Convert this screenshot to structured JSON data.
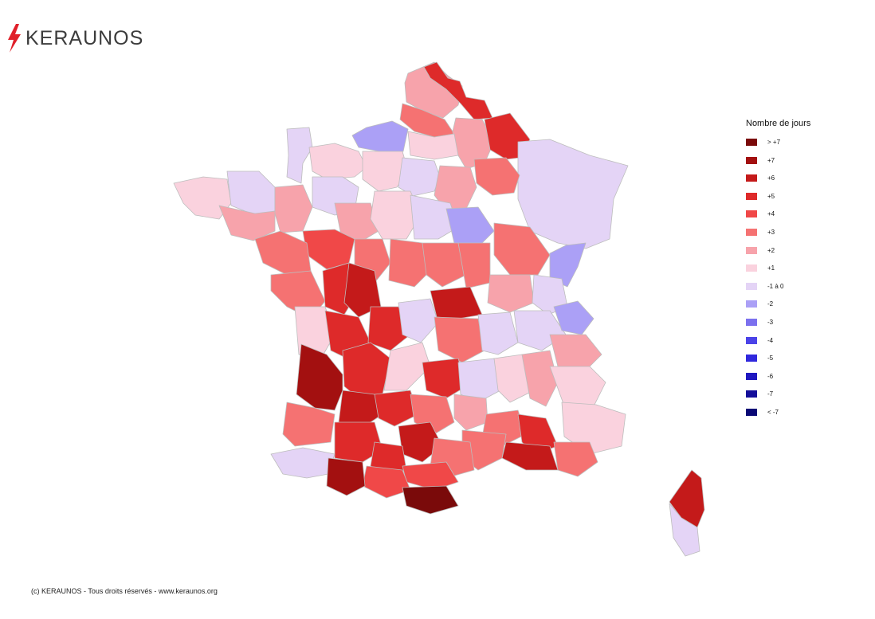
{
  "brand": {
    "name": "KERAUNOS",
    "bolt_color": "#e0202a",
    "text_color": "#3c3c3c"
  },
  "legend": {
    "title": "Nombre de jours",
    "items": [
      {
        "label": "> +7",
        "color": "#7a0a0a"
      },
      {
        "label": "+7",
        "color": "#a31010"
      },
      {
        "label": "+6",
        "color": "#c41a1a"
      },
      {
        "label": "+5",
        "color": "#de2a2a"
      },
      {
        "label": "+4",
        "color": "#f04848"
      },
      {
        "label": "+3",
        "color": "#f57272"
      },
      {
        "label": "+2",
        "color": "#f7a3ab"
      },
      {
        "label": "+1",
        "color": "#fad2de"
      },
      {
        "label": "-1 à 0",
        "color": "#e4d4f6"
      },
      {
        "label": "-2",
        "color": "#aba0f6"
      },
      {
        "label": "-3",
        "color": "#7b70ee"
      },
      {
        "label": "-4",
        "color": "#4b43e8"
      },
      {
        "label": "-5",
        "color": "#3028dd"
      },
      {
        "label": "-6",
        "color": "#2018c0"
      },
      {
        "label": "-7",
        "color": "#140e9a"
      },
      {
        "label": "< -7",
        "color": "#0a0875"
      }
    ]
  },
  "footer": {
    "text": "(c) KERAUNOS - Tous droits réservés - www.keraunos.org"
  }
}
